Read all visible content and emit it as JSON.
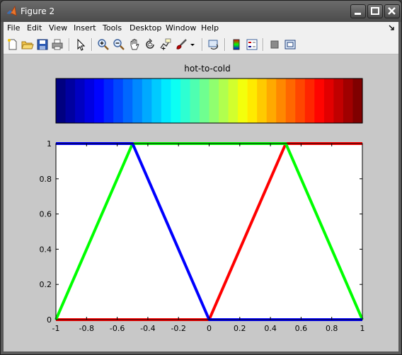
{
  "window": {
    "title": "Figure 2"
  },
  "menu": {
    "items": [
      "File",
      "Edit",
      "View",
      "Insert",
      "Tools",
      "Desktop",
      "Window",
      "Help"
    ]
  },
  "toolbar": {
    "buttons": [
      "new-figure",
      "open-file",
      "save",
      "print",
      "edit-plot",
      "zoom-in",
      "zoom-out",
      "pan",
      "rotate-3d",
      "data-cursor",
      "brush",
      "brush-menu",
      "link-plot",
      "insert-colorbar",
      "insert-legend",
      "hide-plot-tools",
      "show-plot-tools"
    ]
  },
  "colors": {
    "red": "#ff0000",
    "green": "#00ff00",
    "blue": "#0000ff",
    "figure_bg": "#c8c8c8"
  },
  "chart_data": [
    {
      "type": "heatmap",
      "title": "hot-to-cold",
      "colormap": "jet-like: blue → cyan → green → yellow → red",
      "n_colors": 32
    },
    {
      "type": "line",
      "title": "",
      "xlabel": "",
      "ylabel": "",
      "xlim": [
        -1,
        1
      ],
      "ylim": [
        0,
        1
      ],
      "xticks": [
        "-1",
        "-0.8",
        "-0.6",
        "-0.4",
        "-0.2",
        "0",
        "0.2",
        "0.4",
        "0.6",
        "0.8",
        "1"
      ],
      "yticks": [
        "0",
        "0.2",
        "0.4",
        "0.6",
        "0.8",
        "1"
      ],
      "grid": false,
      "legend": "none",
      "series": [
        {
          "color": "#ff0000",
          "x": [
            -1,
            0,
            0.5,
            1
          ],
          "y": [
            0,
            0,
            1,
            1
          ]
        },
        {
          "color": "#00ff00",
          "x": [
            -1,
            -0.5,
            0.5,
            1
          ],
          "y": [
            0,
            1,
            1,
            0
          ]
        },
        {
          "color": "#0000ff",
          "x": [
            -1,
            -0.5,
            0,
            1
          ],
          "y": [
            1,
            1,
            0,
            0
          ]
        }
      ]
    }
  ]
}
